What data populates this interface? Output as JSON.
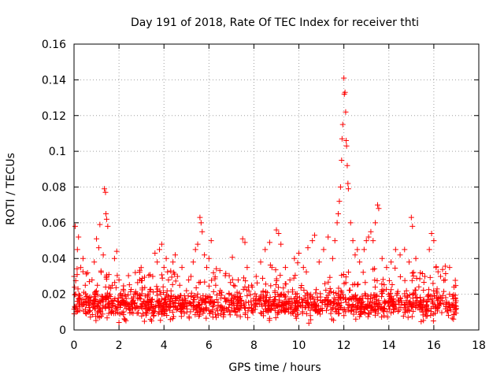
{
  "chart_data": {
    "type": "scatter",
    "title": "Day 191 of 2018, Rate Of TEC Index for receiver thti",
    "xlabel": "GPS time / hours",
    "ylabel": "ROTI / TECUs",
    "xlim": [
      0,
      18
    ],
    "ylim": [
      0,
      0.16
    ],
    "x_ticks": [
      0,
      2,
      4,
      6,
      8,
      10,
      12,
      14,
      16,
      18
    ],
    "x_tick_labels": [
      "0",
      "2",
      "4",
      "6",
      "8",
      "10",
      "12",
      "14",
      "16",
      "18"
    ],
    "y_ticks": [
      0,
      0.02,
      0.04,
      0.06,
      0.08,
      0.1,
      0.12,
      0.14,
      0.16
    ],
    "y_tick_labels": [
      "0",
      "0.02",
      "0.04",
      "0.06",
      "0.08",
      "0.1",
      "0.12",
      "0.14",
      "0.16"
    ],
    "grid": true,
    "series_color": "#ff0000",
    "series": [
      {
        "name": "ROTI",
        "marker": "+",
        "points": [
          [
            0.0,
            0.03
          ],
          [
            0.05,
            0.058
          ],
          [
            0.1,
            0.012
          ],
          [
            0.15,
            0.045
          ],
          [
            0.2,
            0.052
          ],
          [
            0.25,
            0.018
          ],
          [
            0.3,
            0.035
          ],
          [
            0.4,
            0.04
          ],
          [
            0.5,
            0.025
          ],
          [
            0.6,
            0.032
          ],
          [
            0.7,
            0.015
          ],
          [
            0.8,
            0.028
          ],
          [
            0.9,
            0.038
          ],
          [
            1.0,
            0.051
          ],
          [
            1.1,
            0.046
          ],
          [
            1.15,
            0.059
          ],
          [
            1.2,
            0.033
          ],
          [
            1.3,
            0.042
          ],
          [
            1.35,
            0.079
          ],
          [
            1.4,
            0.077
          ],
          [
            1.42,
            0.065
          ],
          [
            1.45,
            0.062
          ],
          [
            1.5,
            0.058
          ],
          [
            1.55,
            0.031
          ],
          [
            1.6,
            0.02
          ],
          [
            1.7,
            0.025
          ],
          [
            1.8,
            0.04
          ],
          [
            1.9,
            0.044
          ],
          [
            2.0,
            0.028
          ],
          [
            2.1,
            0.018
          ],
          [
            2.2,
            0.022
          ],
          [
            2.3,
            0.015
          ],
          [
            2.5,
            0.012
          ],
          [
            2.7,
            0.02
          ],
          [
            2.9,
            0.018
          ],
          [
            3.1,
            0.016
          ],
          [
            3.3,
            0.02
          ],
          [
            3.5,
            0.03
          ],
          [
            3.6,
            0.043
          ],
          [
            3.7,
            0.038
          ],
          [
            3.8,
            0.045
          ],
          [
            3.9,
            0.048
          ],
          [
            4.0,
            0.035
          ],
          [
            4.1,
            0.04
          ],
          [
            4.2,
            0.028
          ],
          [
            4.3,
            0.033
          ],
          [
            4.4,
            0.038
          ],
          [
            4.5,
            0.042
          ],
          [
            4.6,
            0.03
          ],
          [
            4.7,
            0.025
          ],
          [
            4.8,
            0.035
          ],
          [
            5.0,
            0.022
          ],
          [
            5.1,
            0.028
          ],
          [
            5.2,
            0.03
          ],
          [
            5.3,
            0.038
          ],
          [
            5.4,
            0.045
          ],
          [
            5.5,
            0.048
          ],
          [
            5.6,
            0.063
          ],
          [
            5.65,
            0.06
          ],
          [
            5.7,
            0.055
          ],
          [
            5.8,
            0.042
          ],
          [
            5.9,
            0.035
          ],
          [
            6.0,
            0.04
          ],
          [
            6.1,
            0.05
          ],
          [
            6.2,
            0.032
          ],
          [
            6.3,
            0.025
          ],
          [
            6.5,
            0.022
          ],
          [
            6.7,
            0.018
          ],
          [
            6.9,
            0.02
          ],
          [
            7.1,
            0.025
          ],
          [
            7.3,
            0.028
          ],
          [
            7.5,
            0.051
          ],
          [
            7.6,
            0.049
          ],
          [
            7.7,
            0.035
          ],
          [
            7.9,
            0.025
          ],
          [
            8.1,
            0.03
          ],
          [
            8.3,
            0.038
          ],
          [
            8.5,
            0.045
          ],
          [
            8.7,
            0.049
          ],
          [
            8.8,
            0.035
          ],
          [
            9.0,
            0.056
          ],
          [
            9.1,
            0.054
          ],
          [
            9.2,
            0.048
          ],
          [
            9.4,
            0.035
          ],
          [
            9.6,
            0.028
          ],
          [
            9.8,
            0.04
          ],
          [
            10.0,
            0.043
          ],
          [
            10.2,
            0.035
          ],
          [
            10.4,
            0.046
          ],
          [
            10.6,
            0.05
          ],
          [
            10.7,
            0.053
          ],
          [
            10.9,
            0.038
          ],
          [
            11.1,
            0.045
          ],
          [
            11.3,
            0.052
          ],
          [
            11.5,
            0.04
          ],
          [
            11.6,
            0.05
          ],
          [
            11.7,
            0.06
          ],
          [
            11.75,
            0.065
          ],
          [
            11.8,
            0.072
          ],
          [
            11.85,
            0.08
          ],
          [
            11.9,
            0.095
          ],
          [
            11.92,
            0.107
          ],
          [
            11.95,
            0.115
          ],
          [
            12.0,
            0.141
          ],
          [
            12.02,
            0.132
          ],
          [
            12.05,
            0.133
          ],
          [
            12.08,
            0.122
          ],
          [
            12.1,
            0.106
          ],
          [
            12.12,
            0.103
          ],
          [
            12.15,
            0.092
          ],
          [
            12.18,
            0.082
          ],
          [
            12.2,
            0.079
          ],
          [
            12.3,
            0.06
          ],
          [
            12.4,
            0.05
          ],
          [
            12.5,
            0.042
          ],
          [
            12.6,
            0.045
          ],
          [
            12.7,
            0.038
          ],
          [
            12.9,
            0.045
          ],
          [
            13.0,
            0.05
          ],
          [
            13.1,
            0.052
          ],
          [
            13.2,
            0.055
          ],
          [
            13.3,
            0.05
          ],
          [
            13.4,
            0.06
          ],
          [
            13.5,
            0.07
          ],
          [
            13.55,
            0.068
          ],
          [
            13.7,
            0.04
          ],
          [
            13.9,
            0.035
          ],
          [
            14.1,
            0.038
          ],
          [
            14.3,
            0.045
          ],
          [
            14.5,
            0.042
          ],
          [
            14.7,
            0.045
          ],
          [
            14.9,
            0.038
          ],
          [
            15.0,
            0.063
          ],
          [
            15.05,
            0.058
          ],
          [
            15.2,
            0.04
          ],
          [
            15.4,
            0.032
          ],
          [
            15.6,
            0.03
          ],
          [
            15.8,
            0.045
          ],
          [
            15.9,
            0.054
          ],
          [
            16.0,
            0.05
          ],
          [
            16.1,
            0.035
          ],
          [
            16.3,
            0.03
          ],
          [
            16.5,
            0.028
          ],
          [
            16.7,
            0.035
          ],
          [
            16.9,
            0.024
          ],
          [
            16.95,
            0.018
          ],
          [
            17.0,
            0.012
          ]
        ]
      }
    ],
    "baseline_band": {
      "x_range": [
        0,
        17
      ],
      "y_center": 0.014,
      "y_spread": 0.011
    }
  }
}
